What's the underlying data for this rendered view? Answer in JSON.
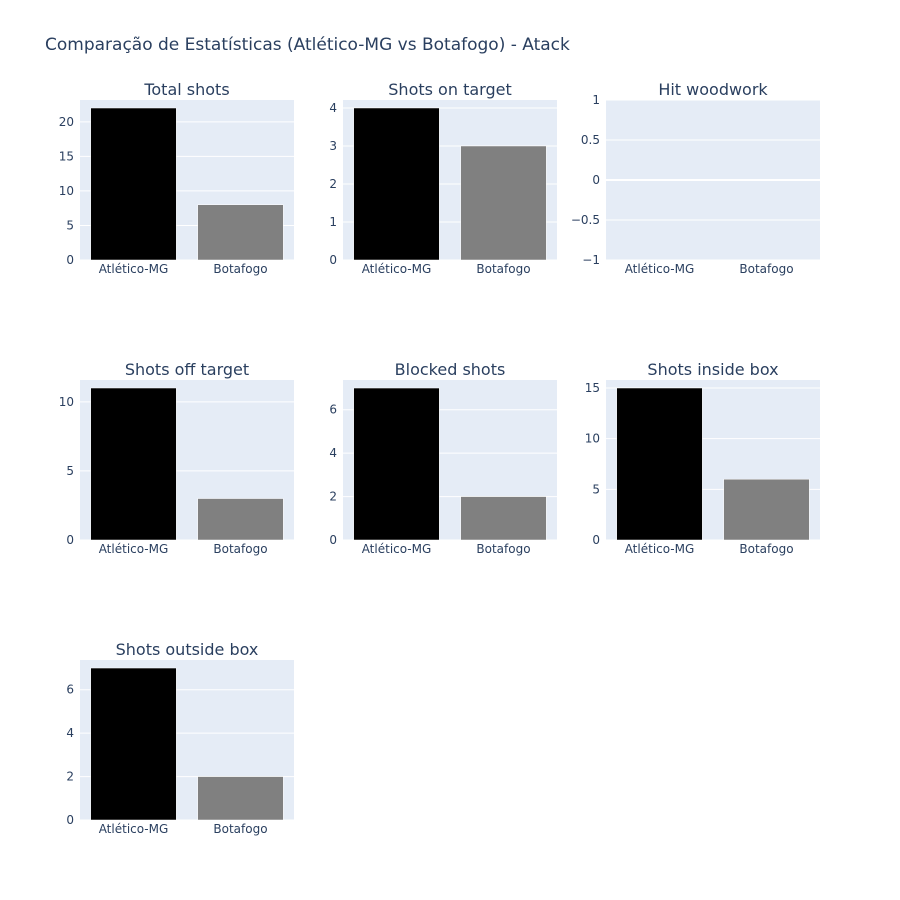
{
  "figure": {
    "title": "Comparação de Estatísticas (Atlético-MG vs Botafogo)  - Atack"
  },
  "colors": {
    "plot_background": "#e5ecf6",
    "grid": "#ffffff",
    "text": "#2a3f5f",
    "Atlético-MG": "#000000",
    "Botafogo": "#808080"
  },
  "chart_data": [
    {
      "type": "bar",
      "title": "Total shots",
      "categories": [
        "Atlético-MG",
        "Botafogo"
      ],
      "values": [
        22,
        8
      ],
      "ylim": [
        0,
        23.16
      ],
      "yticks": [
        0,
        5,
        10,
        15,
        20
      ],
      "ytick_labels": [
        "0",
        "5",
        "10",
        "15",
        "20"
      ],
      "grid": true
    },
    {
      "type": "bar",
      "title": "Shots on target",
      "categories": [
        "Atlético-MG",
        "Botafogo"
      ],
      "values": [
        4,
        3
      ],
      "ylim": [
        0,
        4.21
      ],
      "yticks": [
        0,
        1,
        2,
        3,
        4
      ],
      "ytick_labels": [
        "0",
        "1",
        "2",
        "3",
        "4"
      ],
      "grid": true
    },
    {
      "type": "bar",
      "title": "Hit woodwork",
      "categories": [
        "Atlético-MG",
        "Botafogo"
      ],
      "values": [
        0,
        0
      ],
      "ylim": [
        -1,
        1
      ],
      "yticks": [
        -1,
        -0.5,
        0,
        0.5,
        1
      ],
      "ytick_labels": [
        "−1",
        "−0.5",
        "0",
        "0.5",
        "1"
      ],
      "grid": true
    },
    {
      "type": "bar",
      "title": "Shots off target",
      "categories": [
        "Atlético-MG",
        "Botafogo"
      ],
      "values": [
        11,
        3
      ],
      "ylim": [
        0,
        11.58
      ],
      "yticks": [
        0,
        5,
        10
      ],
      "ytick_labels": [
        "0",
        "5",
        "10"
      ],
      "grid": true
    },
    {
      "type": "bar",
      "title": "Blocked shots",
      "categories": [
        "Atlético-MG",
        "Botafogo"
      ],
      "values": [
        7,
        2
      ],
      "ylim": [
        0,
        7.37
      ],
      "yticks": [
        0,
        2,
        4,
        6
      ],
      "ytick_labels": [
        "0",
        "2",
        "4",
        "6"
      ],
      "grid": true
    },
    {
      "type": "bar",
      "title": "Shots inside box",
      "categories": [
        "Atlético-MG",
        "Botafogo"
      ],
      "values": [
        15,
        6
      ],
      "ylim": [
        0,
        15.79
      ],
      "yticks": [
        0,
        5,
        10,
        15
      ],
      "ytick_labels": [
        "0",
        "5",
        "10",
        "15"
      ],
      "grid": true
    },
    {
      "type": "bar",
      "title": "Shots outside box",
      "categories": [
        "Atlético-MG",
        "Botafogo"
      ],
      "values": [
        7,
        2
      ],
      "ylim": [
        0,
        7.37
      ],
      "yticks": [
        0,
        2,
        4,
        6
      ],
      "ytick_labels": [
        "0",
        "2",
        "4",
        "6"
      ],
      "grid": true
    }
  ]
}
